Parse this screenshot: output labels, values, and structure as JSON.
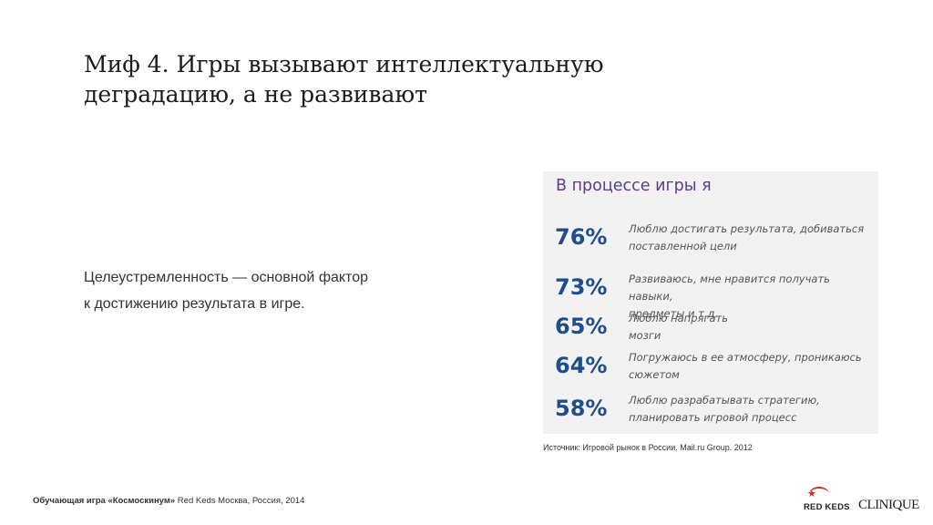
{
  "title": {
    "line1": "Миф 4. Игры вызывают интеллектуальную",
    "line2": "деградацию, а не развивают"
  },
  "body": {
    "line1": "Целеустремленность — основной фактор",
    "line2": "к достижению результата в игре."
  },
  "panel": {
    "heading": "В процессе игры я",
    "stats": [
      {
        "percent": "76%",
        "line1": "Люблю достигать результата, добиваться",
        "line2": "поставленной цели"
      },
      {
        "percent": "73%",
        "line1": "Развиваюсь, мне нравится получать навыки,",
        "line2": "предметы и т.д."
      },
      {
        "percent": "65%",
        "line1": "Люблю напрягать",
        "line2": "мозги"
      },
      {
        "percent": "64%",
        "line1": "Погружаюсь в ее атмосферу, проникаюсь",
        "line2": "сюжетом"
      },
      {
        "percent": "58%",
        "line1": "Люблю разрабатывать стратегию,",
        "line2": "планировать игровой процесс"
      }
    ]
  },
  "source": "Источник: Игровой рынок в России. Mail.ru Group. 2012",
  "footer": {
    "bold": "Обучающая игра «Космоскинум»",
    "rest": " Red Keds Москва, Россия, 2014"
  },
  "logos": {
    "red_keds": "RED KEDS",
    "clinique": "CLINIQUE"
  },
  "colors": {
    "heading_purple": "#5c3d8a",
    "percent_blue": "#1f4e8c",
    "panel_bg": "#f2f2f2",
    "logo_red": "#d62828"
  }
}
